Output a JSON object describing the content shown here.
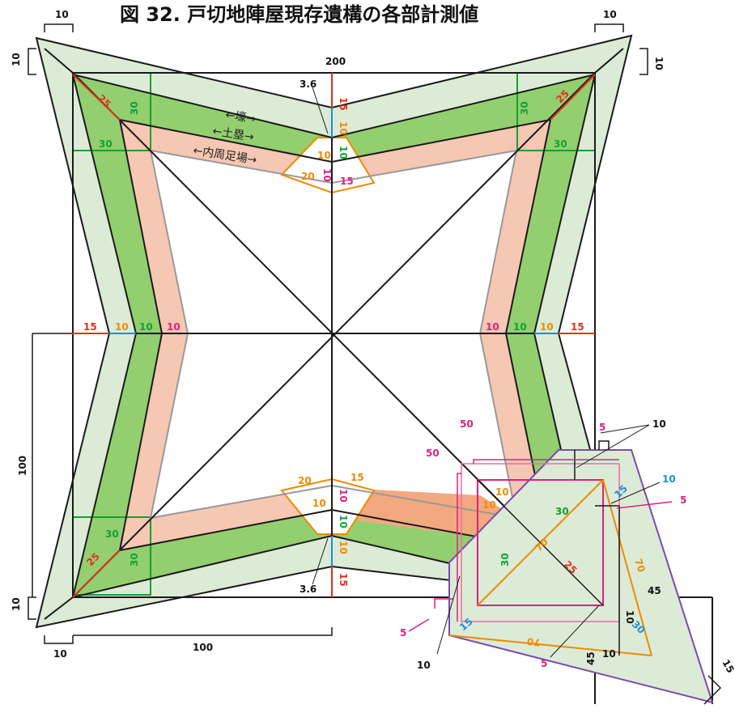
{
  "title": "図 32. 戸切地陣屋現存遺構の各部計測値",
  "labels": {
    "moat": "←壕→",
    "earthwork": "←土塁→",
    "footing": "←内周足場→"
  },
  "dims": {
    "top_200": "200",
    "left_100": "100",
    "bottom_100": "100",
    "tl_top_10": "10",
    "tl_left_10": "10",
    "tr_top_10": "10",
    "tr_right_10": "10",
    "bl_left_10": "10",
    "bl_bottom_10": "10",
    "tl_red_25": "25",
    "tl_green_30_v": "30",
    "tl_green_30_h": "30",
    "tr_red_25": "25",
    "tr_green_30_v": "30",
    "tr_green_30_h": "30",
    "bl_green_30_h": "30",
    "bl_red_25": "25",
    "bl_green_30_v": "30",
    "top_red_15": "15",
    "top_blue_10": "10",
    "top_green_10": "10",
    "top_orange_10": "10",
    "top_mag_10": "10",
    "top_orange_20": "20",
    "top_mag_15": "15",
    "top_36": "3.6",
    "left_red_15": "15",
    "left_orange_10": "10",
    "left_green_10": "10",
    "left_mag_10": "10",
    "right_mag_10": "10",
    "right_green_10": "10",
    "right_orange_10": "10",
    "right_red_15": "15",
    "bot_orange_20": "20",
    "bot_mag_15": "15",
    "bot_orange_10": "10",
    "bot_mag_10": "10",
    "bot_green_10": "10",
    "bot_orange_10b": "10",
    "bot_red_15": "15",
    "bot_36": "3.6",
    "d_mag_50a": "50",
    "d_mag_50b": "50",
    "d_mag_5_top": "5",
    "d_black_10_top": "10",
    "d_blue_10": "10",
    "d_mag_5_right": "5",
    "d_orange_10a": "10",
    "d_orange_10b": "10",
    "d_green_30_h": "30",
    "d_green_30_v": "30",
    "d_orange_70a": "70",
    "d_red_25": "25",
    "d_orange_70b": "70",
    "d_purple_15_top": "15",
    "d_black_45_right": "45",
    "d_black_10_right": "10",
    "d_blue_30": "30",
    "d_orange_70c": "70",
    "d_purple_15_left": "15",
    "d_mag_5_left": "5",
    "d_black_10_left": "10",
    "d_mag_5_bottom": "5",
    "d_black_45_bottom": "45",
    "d_black_10_bottom": "10",
    "d_black_15_corner": "15"
  },
  "colors": {
    "moat": "#dcebd6",
    "earthwork": "#93cf6e",
    "footing": "#f6c7b2",
    "footing_dark": "#f3a97f",
    "red": "#e0301e",
    "green": "#12a035",
    "orange": "#f08a00",
    "magenta": "#e0207f",
    "blue": "#1b8fd8",
    "purple": "#7a4bb0"
  }
}
